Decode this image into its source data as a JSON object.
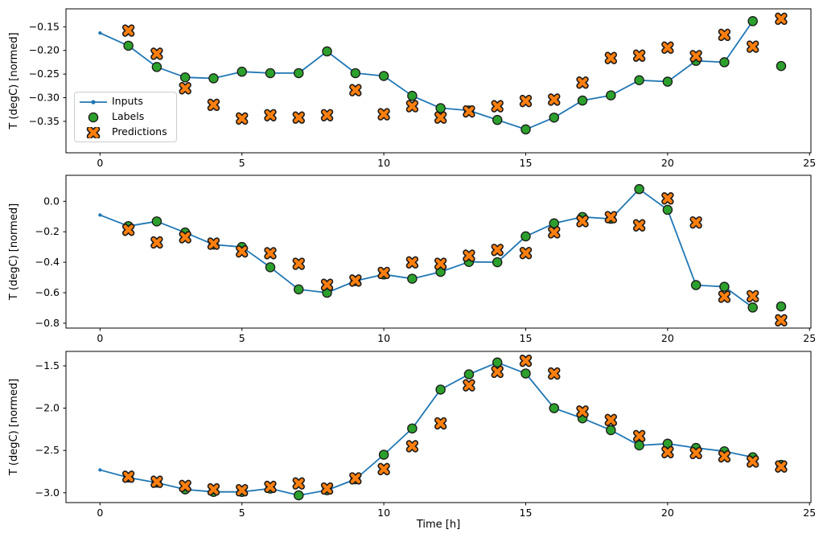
{
  "figure": {
    "xlabel": "Time [h]",
    "ylabel": "T (degC) [normed]",
    "background": "#ffffff",
    "colors": {
      "inputs_line": "#1f77b4",
      "labels_marker": "#2ca02c",
      "predictions_marker": "#ff7f0e",
      "marker_edge": "#000000",
      "spine": "#000000",
      "tick_text": "#000000"
    },
    "legend": {
      "position": "upper-left-inside-top-subplot",
      "items": [
        {
          "label": "Inputs"
        },
        {
          "label": "Labels"
        },
        {
          "label": "Predictions"
        }
      ]
    }
  },
  "chart_data": [
    {
      "type": "line",
      "subplot": "top",
      "ylabel": "T (degC) [normed]",
      "xlabel": "",
      "grid": false,
      "xlim": [
        -1.2,
        25.05
      ],
      "ylim": [
        -0.4165,
        -0.112
      ],
      "xticks": [
        0,
        5,
        10,
        15,
        20,
        25
      ],
      "xtick_labels": [
        "0",
        "5",
        "10",
        "15",
        "20",
        "25"
      ],
      "yticks": [
        -0.15,
        -0.2,
        -0.25,
        -0.3,
        -0.35
      ],
      "ytick_labels": [
        "−0.15",
        "−0.20",
        "−0.25",
        "−0.30",
        "−0.35"
      ],
      "series": [
        {
          "name": "Inputs",
          "style": "line-with-dots",
          "color": "#1f77b4",
          "x": [
            0,
            1,
            2,
            3,
            4,
            5,
            6,
            7,
            8,
            9,
            10,
            11,
            12,
            13,
            14,
            15,
            16,
            17,
            18,
            19,
            20,
            21,
            22,
            23
          ],
          "y": [
            -0.163,
            -0.19,
            -0.235,
            -0.257,
            -0.259,
            -0.245,
            -0.248,
            -0.248,
            -0.202,
            -0.248,
            -0.254,
            -0.296,
            -0.322,
            -0.327,
            -0.347,
            -0.367,
            -0.342,
            -0.306,
            -0.295,
            -0.263,
            -0.266,
            -0.222,
            -0.225,
            -0.138
          ]
        },
        {
          "name": "Labels",
          "style": "circle",
          "color": "#2ca02c",
          "x": [
            1,
            2,
            3,
            4,
            5,
            6,
            7,
            8,
            9,
            10,
            11,
            12,
            13,
            14,
            15,
            16,
            17,
            18,
            19,
            20,
            21,
            22,
            23,
            24
          ],
          "y": [
            -0.19,
            -0.235,
            -0.257,
            -0.259,
            -0.245,
            -0.248,
            -0.248,
            -0.202,
            -0.248,
            -0.254,
            -0.296,
            -0.322,
            -0.327,
            -0.347,
            -0.367,
            -0.342,
            -0.306,
            -0.295,
            -0.263,
            -0.266,
            -0.222,
            -0.225,
            -0.138,
            -0.233
          ]
        },
        {
          "name": "Predictions",
          "style": "x-cross",
          "color": "#ff7f0e",
          "x": [
            1,
            2,
            3,
            4,
            5,
            6,
            7,
            8,
            9,
            10,
            11,
            12,
            13,
            14,
            15,
            16,
            17,
            18,
            19,
            20,
            21,
            22,
            23,
            24
          ],
          "y": [
            -0.158,
            -0.207,
            -0.28,
            -0.315,
            -0.344,
            -0.337,
            -0.342,
            -0.337,
            -0.284,
            -0.335,
            -0.318,
            -0.342,
            -0.329,
            -0.318,
            -0.307,
            -0.304,
            -0.268,
            -0.216,
            -0.211,
            -0.194,
            -0.212,
            -0.167,
            -0.192,
            -0.133
          ]
        }
      ]
    },
    {
      "type": "line",
      "subplot": "middle",
      "ylabel": "T (degC) [normed]",
      "xlabel": "",
      "grid": false,
      "xlim": [
        -1.2,
        25.05
      ],
      "ylim": [
        -0.832,
        0.1705
      ],
      "xticks": [
        0,
        5,
        10,
        15,
        20,
        25
      ],
      "xtick_labels": [
        "0",
        "5",
        "10",
        "15",
        "20",
        "25"
      ],
      "yticks": [
        0.0,
        -0.2,
        -0.4,
        -0.6,
        -0.8
      ],
      "ytick_labels": [
        "0.0",
        "−0.2",
        "−0.4",
        "−0.6",
        "−0.8"
      ],
      "series": [
        {
          "name": "Inputs",
          "style": "line-with-dots",
          "color": "#1f77b4",
          "x": [
            0,
            1,
            2,
            3,
            4,
            5,
            6,
            7,
            8,
            9,
            10,
            11,
            12,
            13,
            14,
            15,
            16,
            17,
            18,
            19,
            20,
            21,
            22,
            23
          ],
          "y": [
            -0.09,
            -0.163,
            -0.132,
            -0.205,
            -0.284,
            -0.3,
            -0.433,
            -0.578,
            -0.6,
            -0.523,
            -0.48,
            -0.508,
            -0.463,
            -0.398,
            -0.4,
            -0.23,
            -0.145,
            -0.103,
            -0.115,
            0.08,
            -0.056,
            -0.55,
            -0.561,
            -0.697
          ]
        },
        {
          "name": "Labels",
          "style": "circle",
          "color": "#2ca02c",
          "x": [
            1,
            2,
            3,
            4,
            5,
            6,
            7,
            8,
            9,
            10,
            11,
            12,
            13,
            14,
            15,
            16,
            17,
            18,
            19,
            20,
            21,
            22,
            23,
            24
          ],
          "y": [
            -0.163,
            -0.132,
            -0.205,
            -0.284,
            -0.3,
            -0.433,
            -0.578,
            -0.6,
            -0.523,
            -0.48,
            -0.508,
            -0.463,
            -0.398,
            -0.4,
            -0.23,
            -0.145,
            -0.103,
            -0.115,
            0.08,
            -0.056,
            -0.55,
            -0.561,
            -0.697,
            -0.69
          ]
        },
        {
          "name": "Predictions",
          "style": "x-cross",
          "color": "#ff7f0e",
          "x": [
            1,
            2,
            3,
            4,
            5,
            6,
            7,
            8,
            9,
            10,
            11,
            12,
            13,
            14,
            15,
            16,
            17,
            18,
            19,
            20,
            21,
            22,
            23,
            24
          ],
          "y": [
            -0.187,
            -0.27,
            -0.236,
            -0.278,
            -0.329,
            -0.341,
            -0.41,
            -0.548,
            -0.52,
            -0.47,
            -0.401,
            -0.41,
            -0.357,
            -0.319,
            -0.34,
            -0.204,
            -0.13,
            -0.104,
            -0.158,
            0.019,
            -0.139,
            -0.626,
            -0.623,
            -0.781
          ]
        }
      ]
    },
    {
      "type": "line",
      "subplot": "bottom",
      "ylabel": "T (degC) [normed]",
      "xlabel": "Time [h]",
      "grid": false,
      "xlim": [
        -1.2,
        25.05
      ],
      "ylim": [
        -3.116,
        -1.329
      ],
      "xticks": [
        0,
        5,
        10,
        15,
        20,
        25
      ],
      "xtick_labels": [
        "0",
        "5",
        "10",
        "15",
        "20",
        "25"
      ],
      "yticks": [
        -1.5,
        -2.0,
        -2.5,
        -3.0
      ],
      "ytick_labels": [
        "−1.5",
        "−2.0",
        "−2.5",
        "−3.0"
      ],
      "series": [
        {
          "name": "Inputs",
          "style": "line-with-dots",
          "color": "#1f77b4",
          "x": [
            0,
            1,
            2,
            3,
            4,
            5,
            6,
            7,
            8,
            9,
            10,
            11,
            12,
            13,
            14,
            15,
            16,
            17,
            18,
            19,
            20,
            21,
            22,
            23
          ],
          "y": [
            -2.73,
            -2.82,
            -2.88,
            -2.96,
            -2.99,
            -2.99,
            -2.95,
            -3.03,
            -2.97,
            -2.84,
            -2.55,
            -2.24,
            -1.78,
            -1.6,
            -1.46,
            -1.59,
            -2.0,
            -2.12,
            -2.26,
            -2.44,
            -2.42,
            -2.47,
            -2.51,
            -2.58
          ]
        },
        {
          "name": "Labels",
          "style": "circle",
          "color": "#2ca02c",
          "x": [
            1,
            2,
            3,
            4,
            5,
            6,
            7,
            8,
            9,
            10,
            11,
            12,
            13,
            14,
            15,
            16,
            17,
            18,
            19,
            20,
            21,
            22,
            23,
            24
          ],
          "y": [
            -2.82,
            -2.88,
            -2.96,
            -2.99,
            -2.99,
            -2.95,
            -3.03,
            -2.97,
            -2.84,
            -2.55,
            -2.24,
            -1.78,
            -1.6,
            -1.46,
            -1.59,
            -2.0,
            -2.12,
            -2.26,
            -2.44,
            -2.42,
            -2.47,
            -2.51,
            -2.58,
            -2.67
          ]
        },
        {
          "name": "Predictions",
          "style": "x-cross",
          "color": "#ff7f0e",
          "x": [
            1,
            2,
            3,
            4,
            5,
            6,
            7,
            8,
            9,
            10,
            11,
            12,
            13,
            14,
            15,
            16,
            17,
            18,
            19,
            20,
            21,
            22,
            23,
            24
          ],
          "y": [
            -2.81,
            -2.87,
            -2.92,
            -2.96,
            -2.97,
            -2.93,
            -2.89,
            -2.95,
            -2.83,
            -2.72,
            -2.45,
            -2.18,
            -1.73,
            -1.57,
            -1.44,
            -1.59,
            -2.04,
            -2.14,
            -2.33,
            -2.52,
            -2.53,
            -2.57,
            -2.63,
            -2.69
          ]
        }
      ]
    }
  ]
}
